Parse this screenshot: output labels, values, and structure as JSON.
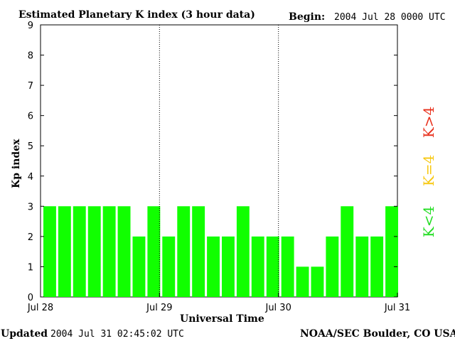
{
  "header": {
    "title": "Estimated Planetary K index (3 hour data)",
    "begin_label": "Begin:",
    "begin_value": "2004 Jul 28 0000 UTC"
  },
  "footer": {
    "updated_label": "Updated",
    "updated_value": "2004 Jul 31 02:45:02 UTC",
    "source": "NOAA/SEC Boulder, CO USA"
  },
  "legend": [
    {
      "label": "K<4",
      "color": "#22dd22"
    },
    {
      "label": "K=4",
      "color": "#f7c812"
    },
    {
      "label": "K>4",
      "color": "#e8301c"
    }
  ],
  "chart_data": {
    "type": "bar",
    "title": "Estimated Planetary K index (3 hour data)",
    "xlabel": "Universal Time",
    "ylabel": "Kp index",
    "ylim": [
      0,
      9
    ],
    "yticks": [
      0,
      1,
      2,
      3,
      4,
      5,
      6,
      7,
      8,
      9
    ],
    "xticks": [
      "Jul 28",
      "Jul 29",
      "Jul 30",
      "Jul 31"
    ],
    "day_separators": [
      "Jul 29",
      "Jul 30"
    ],
    "bar_color": "#11ff00",
    "interval_hours": 3,
    "values": [
      3,
      3,
      3,
      3,
      3,
      3,
      2,
      3,
      2,
      3,
      3,
      2,
      2,
      3,
      2,
      2,
      2,
      1,
      1,
      2,
      3,
      2,
      2,
      3
    ]
  }
}
